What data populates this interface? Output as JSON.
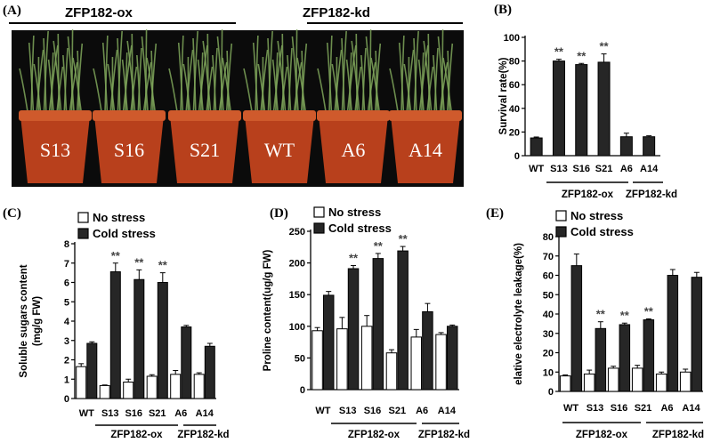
{
  "photo": {
    "panel_label": "(A)",
    "group_left": "ZFP182-ox",
    "group_right": "ZFP182-kd",
    "pots": [
      "S13",
      "S16",
      "S21",
      "WT",
      "A6",
      "A14"
    ],
    "colors": {
      "background": "#0b0b0b",
      "pot": "#b8401c",
      "pot_rim": "#cf5a2c",
      "grass": "#7fa65a"
    }
  },
  "groups": {
    "ox": "ZFP182-ox",
    "kd": "ZFP182-kd"
  },
  "legend": {
    "no_stress": "No stress",
    "cold_stress": "Cold stress"
  },
  "colors": {
    "bar_dark": "#262626",
    "bar_light": "#ffffff",
    "stroke": "#000000",
    "star": "#444444"
  },
  "chart_data": [
    {
      "id": "B",
      "panel_label": "(B)",
      "type": "bar",
      "categories": [
        "WT",
        "S13",
        "S16",
        "S21",
        "A6",
        "A14"
      ],
      "series": [
        {
          "values": [
            15,
            80,
            77,
            79,
            16,
            16
          ],
          "errors": [
            0.8,
            1.5,
            1,
            7,
            3,
            0.8
          ],
          "color": "#262626"
        }
      ],
      "significance": [
        "",
        "**",
        "**",
        "**",
        "",
        ""
      ],
      "ylabel": "Survival rate(%)",
      "ylim": [
        0,
        100
      ],
      "yticks": [
        0,
        20,
        40,
        60,
        80,
        100
      ]
    },
    {
      "id": "C",
      "panel_label": "(C)",
      "type": "bar",
      "categories": [
        "WT",
        "S13",
        "S16",
        "S21",
        "A6",
        "A14"
      ],
      "series": [
        {
          "name": "No stress",
          "values": [
            1.65,
            0.67,
            0.85,
            1.15,
            1.25,
            1.25
          ],
          "errors": [
            0.15,
            0.03,
            0.15,
            0.08,
            0.2,
            0.08
          ],
          "color": "#ffffff"
        },
        {
          "name": "Cold stress",
          "values": [
            2.85,
            6.55,
            6.15,
            6.0,
            3.7,
            2.7
          ],
          "errors": [
            0.08,
            0.45,
            0.5,
            0.5,
            0.08,
            0.15
          ],
          "color": "#262626"
        }
      ],
      "significance": [
        "",
        "**",
        "**",
        "**",
        "",
        ""
      ],
      "ylabel": "Soluble sugars content\n(mg/g FW)",
      "ylim": [
        0,
        8
      ],
      "yticks": [
        0,
        1,
        2,
        3,
        4,
        5,
        6,
        7,
        8
      ]
    },
    {
      "id": "D",
      "panel_label": "(D)",
      "type": "bar",
      "categories": [
        "WT",
        "S13",
        "S16",
        "S21",
        "A6",
        "A14"
      ],
      "series": [
        {
          "name": "No stress",
          "values": [
            93,
            96,
            100,
            58,
            83,
            87
          ],
          "errors": [
            5,
            18,
            17,
            5,
            12,
            3
          ],
          "color": "#ffffff"
        },
        {
          "name": "Cold stress",
          "values": [
            149,
            191,
            207,
            219,
            123,
            100
          ],
          "errors": [
            6,
            5,
            8,
            7,
            13,
            2
          ],
          "color": "#262626"
        }
      ],
      "significance": [
        "",
        "**",
        "**",
        "**",
        "",
        ""
      ],
      "ylabel": "Proline content(ug/g FW)",
      "ylim": [
        0,
        250
      ],
      "yticks": [
        0,
        50,
        100,
        150,
        200,
        250
      ]
    },
    {
      "id": "E",
      "panel_label": "(E)",
      "type": "bar",
      "categories": [
        "WT",
        "S13",
        "S16",
        "S21",
        "A6",
        "A14"
      ],
      "series": [
        {
          "name": "No stress",
          "values": [
            8,
            9,
            12,
            12,
            9,
            10
          ],
          "errors": [
            0.5,
            2,
            1,
            1.5,
            1,
            1.5
          ],
          "color": "#ffffff"
        },
        {
          "name": "Cold stress",
          "values": [
            65,
            32.5,
            34.5,
            37,
            60,
            59
          ],
          "errors": [
            6,
            3.5,
            0.8,
            0.5,
            3,
            2.5
          ],
          "color": "#262626"
        }
      ],
      "significance": [
        "",
        "**",
        "**",
        "**",
        "",
        ""
      ],
      "ylabel": "elative electrolyte leakage(%)",
      "ylim": [
        0,
        80
      ],
      "yticks": [
        0,
        10,
        20,
        30,
        40,
        50,
        60,
        70,
        80
      ]
    }
  ]
}
